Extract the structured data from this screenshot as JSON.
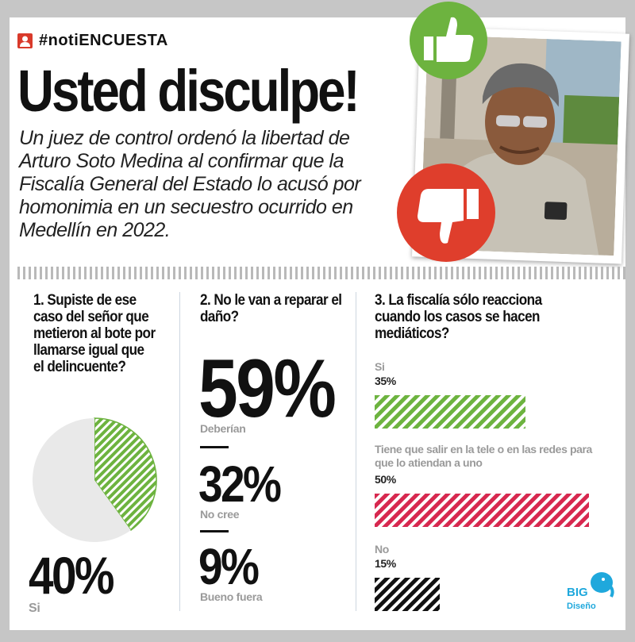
{
  "header": {
    "hashtag": "#notiENCUESTA",
    "title": "Usted disculpe!",
    "lede": "Un juez de control ordenó la libertad de Arturo Soto Medina al confirmar que la Fiscalía General del Estado lo acusó por homonimia en un secuestro ocurrido en Medellín en 2022."
  },
  "icons": [
    "user-icon",
    "thumbs-up-icon",
    "thumbs-down-icon"
  ],
  "colors": {
    "green": "#6db33f",
    "red": "#df3e2c",
    "crimson": "#d7284f",
    "black": "#111111",
    "grey": "#e9e9e9",
    "brand_blue": "#1fa8dc"
  },
  "questions": [
    {
      "label": "1. Supiste de ese caso del señor que metieron al bote por llamarse igual que el delincuente?"
    },
    {
      "label": "2. No le van a reparar el daño?"
    },
    {
      "label": "3. La fiscalía sólo reacciona cuando los casos se hacen mediáticos?"
    }
  ],
  "q1": {
    "value_label": "40%",
    "option": "Si"
  },
  "q2": {
    "items": [
      {
        "value_label": "59%",
        "option": "Deberían"
      },
      {
        "value_label": "32%",
        "option": "No cree"
      },
      {
        "value_label": "9%",
        "option": "Bueno fuera"
      }
    ]
  },
  "q3": {
    "items": [
      {
        "option": "Si",
        "value_label": "35%"
      },
      {
        "option": "Tiene que salir en la tele o en las redes para que lo atiendan a uno",
        "value_label": "50%"
      },
      {
        "option": "No",
        "value_label": "15%"
      }
    ]
  },
  "logo": {
    "name": "BIG",
    "sub": "Diseño"
  },
  "chart_data": [
    {
      "type": "pie",
      "title": "1. Supiste de ese caso del señor que metieron al bote por llamarse igual que el delincuente?",
      "categories": [
        "Si",
        ""
      ],
      "values": [
        40,
        60
      ],
      "colors": [
        "#6db33f",
        "#e9e9e9"
      ]
    },
    {
      "type": "table",
      "title": "2. No le van a reparar el daño?",
      "categories": [
        "Deberían",
        "No cree",
        "Bueno fuera"
      ],
      "values": [
        59,
        32,
        9
      ]
    },
    {
      "type": "bar",
      "title": "3. La fiscalía sólo reacciona cuando los casos se hacen mediáticos?",
      "categories": [
        "Si",
        "Tiene que salir en la tele o en las redes para que lo atiendan a uno",
        "No"
      ],
      "values": [
        35,
        50,
        15
      ],
      "colors": [
        "#6db33f",
        "#d7284f",
        "#111111"
      ]
    }
  ]
}
